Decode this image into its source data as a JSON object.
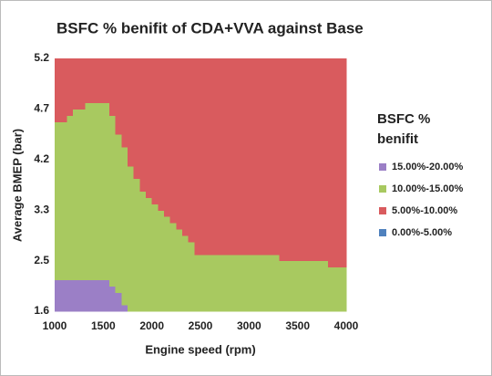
{
  "chart_data": {
    "type": "contour",
    "title": "BSFC % benifit of CDA+VVA against Base",
    "x_label": "Engine speed (rpm)",
    "y_label": "Average BMEP (bar)",
    "x_categories": [
      "1000",
      "1500",
      "2000",
      "2500",
      "3000",
      "3500",
      "4000"
    ],
    "y_categories": [
      "1.6",
      "2.5",
      "3.3",
      "4.2",
      "4.7",
      "5.2"
    ],
    "z": [
      [
        17,
        17,
        13,
        13,
        12,
        12,
        12
      ],
      [
        14,
        14,
        13,
        10.2,
        10.4,
        10.1,
        9.7
      ],
      [
        13,
        13,
        10.5,
        8,
        7,
        7,
        7
      ],
      [
        11,
        12,
        8,
        7,
        7,
        7,
        7
      ],
      [
        9.5,
        10.5,
        7,
        6,
        6,
        6,
        6
      ],
      [
        8,
        7,
        7,
        7,
        6,
        6,
        6
      ]
    ],
    "legend_title": "BSFC % benifit",
    "bands": [
      {
        "name": "15.00%-20.00%",
        "color": "#9b7fc6",
        "min": 15,
        "max": 20
      },
      {
        "name": "10.00%-15.00%",
        "color": "#a8c960",
        "min": 10,
        "max": 15
      },
      {
        "name": "5.00%-10.00%",
        "color": "#d95b5e",
        "min": 5,
        "max": 10
      },
      {
        "name": "0.00%-5.00%",
        "color": "#4f81bd",
        "min": 0,
        "max": 5
      }
    ]
  }
}
